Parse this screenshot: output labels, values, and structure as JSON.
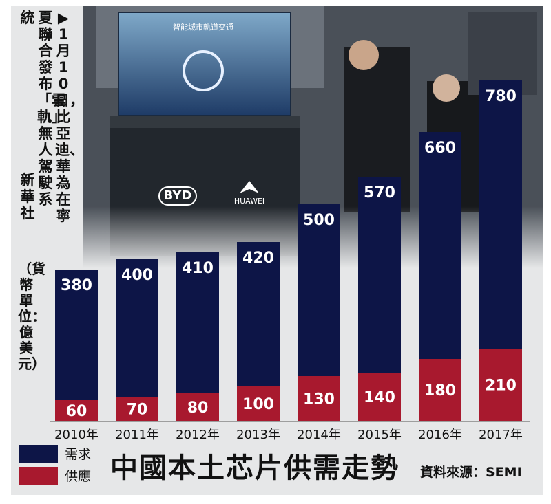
{
  "caption": {
    "col1": "▶1月10日，比亞迪、華為在寧",
    "col2": "夏聯合發布「雲軌」無人駕駛系",
    "col3": "統",
    "col4": "新華社"
  },
  "photo_text": {
    "screen_title": "智能城市軌道交通",
    "byd_logo": "BYD",
    "huawei_logo": "HUAWEI"
  },
  "unit_label": "（貨幣單位：億美元）",
  "title": "中國本土芯片供需走勢",
  "source": "資料來源：SEMI",
  "colors": {
    "demand": "#0d1547",
    "supply": "#a8192e"
  },
  "legend": [
    {
      "name": "需求"
    },
    {
      "name": "供應"
    }
  ],
  "chart_data": {
    "type": "bar",
    "stacked": true,
    "categories": [
      "2010年",
      "2011年",
      "2012年",
      "2013年",
      "2014年",
      "2015年",
      "2016年",
      "2017年"
    ],
    "series": [
      {
        "name": "需求",
        "values": [
          380,
          400,
          410,
          420,
          500,
          570,
          660,
          780
        ]
      },
      {
        "name": "供應",
        "values": [
          60,
          70,
          80,
          100,
          130,
          140,
          180,
          210
        ]
      }
    ],
    "title": "中國本土芯片供需走勢",
    "ylabel": "（貨幣單位：億美元）",
    "legend_position": "bottom-left",
    "grid": false
  }
}
